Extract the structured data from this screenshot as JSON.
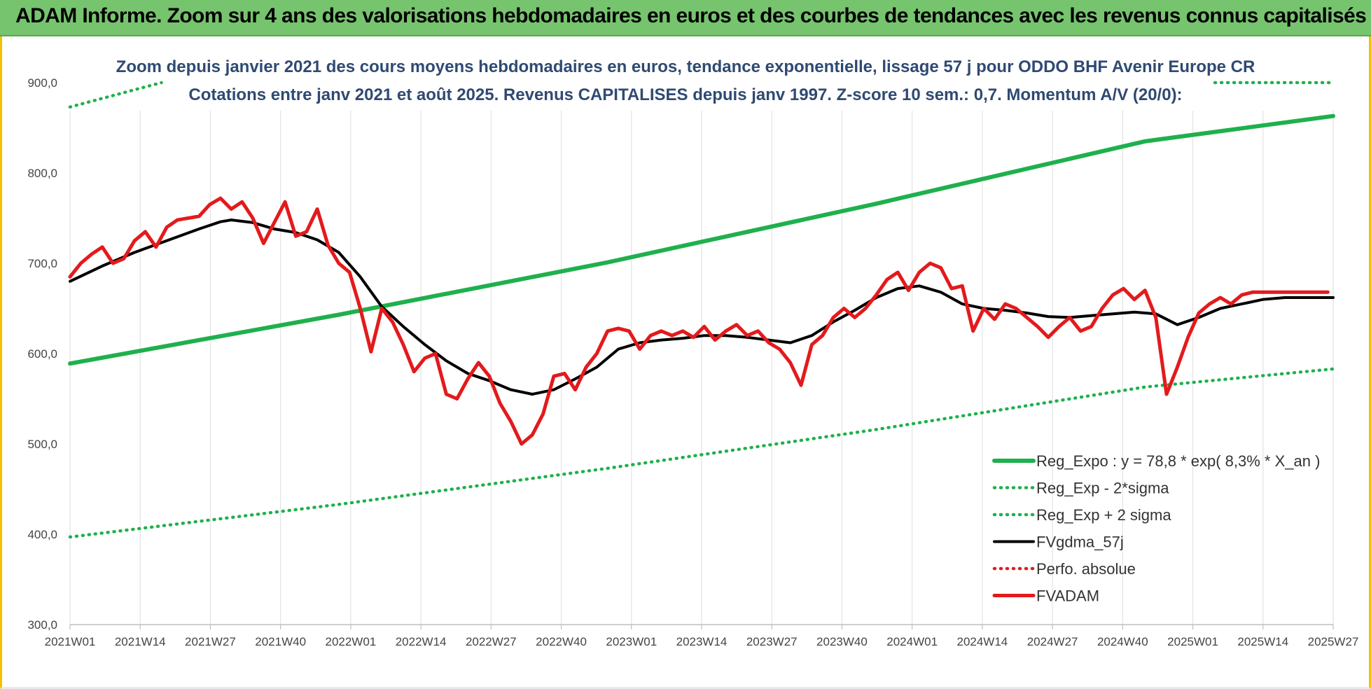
{
  "page": {
    "banner_title": "ADAM Informe. Zoom sur 4 ans des valorisations hebdomadaires en euros et des courbes de tendances avec les revenus connus capitalisés",
    "colors": {
      "banner_bg": "#77c46f",
      "frame_border": "#f2c200"
    }
  },
  "chart_data": {
    "type": "line",
    "title": "Zoom depuis janvier 2021 des cours moyens hebdomadaires en euros, tendance exponentielle, lissage 57 j pour ODDO BHF Avenir Europe CR",
    "subtitle": "Cotations entre janv 2021 et août 2025. Revenus CAPITALISES depuis janv 1997. Z-score 10 sem.: 0,7. Momentum A/V (20/0):",
    "xlabel": "",
    "ylabel": "",
    "ylim": [
      300,
      900
    ],
    "yticks": [
      "300,0",
      "400,0",
      "500,0",
      "600,0",
      "700,0",
      "800,0",
      "900,0"
    ],
    "x_tick_labels": [
      "2021W01",
      "2021W14",
      "2021W27",
      "2021W40",
      "2022W01",
      "2022W14",
      "2022W27",
      "2022W40",
      "2023W01",
      "2023W14",
      "2023W27",
      "2023W40",
      "2024W01",
      "2024W14",
      "2024W27",
      "2024W40",
      "2025W01",
      "2025W14",
      "2025W27"
    ],
    "x_range_weeks": [
      0,
      235
    ],
    "grid": "vertical",
    "legend_position": "bottom-right",
    "series": [
      {
        "name": "Reg_Expo : y = 78,8 * exp( 8,3% *  X_an )",
        "color": "#1fb04d",
        "style": "solid",
        "x": [
          0,
          50,
          100,
          150,
          200,
          235
        ],
        "values": [
          589,
          643,
          701,
          766,
          835,
          863
        ]
      },
      {
        "name": "Reg_Exp - 2*sigma",
        "color": "#1fb04d",
        "style": "dotted",
        "x": [
          0,
          50,
          100,
          150,
          200,
          235
        ],
        "values": [
          397,
          433,
          473,
          516,
          563,
          583
        ]
      },
      {
        "name": "Reg_Exp + 2 sigma",
        "color": "#1fb04d",
        "style": "dotted",
        "x": [
          0,
          17,
          213,
          235
        ],
        "values": [
          873,
          900,
          900,
          900
        ],
        "visible_segments": [
          [
            0,
            17
          ],
          [
            213,
            235
          ]
        ]
      },
      {
        "name": "FVgdma_57j",
        "color": "#000000",
        "style": "solid",
        "x": [
          0,
          6,
          12,
          18,
          24,
          28,
          30,
          34,
          38,
          42,
          46,
          50,
          54,
          58,
          62,
          66,
          70,
          74,
          78,
          82,
          86,
          90,
          94,
          98,
          102,
          106,
          110,
          114,
          118,
          122,
          126,
          130,
          134,
          138,
          142,
          146,
          150,
          154,
          158,
          162,
          166,
          170,
          174,
          178,
          182,
          186,
          190,
          194,
          198,
          202,
          206,
          210,
          214,
          218,
          222,
          226,
          230,
          235
        ],
        "values": [
          680,
          697,
          712,
          725,
          738,
          746,
          748,
          745,
          738,
          734,
          726,
          712,
          685,
          652,
          630,
          610,
          592,
          578,
          570,
          560,
          555,
          560,
          572,
          585,
          605,
          612,
          615,
          617,
          620,
          620,
          618,
          615,
          612,
          620,
          635,
          648,
          662,
          672,
          675,
          668,
          655,
          650,
          648,
          645,
          641,
          640,
          642,
          644,
          646,
          644,
          632,
          640,
          650,
          655,
          660,
          662,
          662,
          662
        ]
      },
      {
        "name": "Perfo. absolue",
        "color": "#e31a1c",
        "style": "dotted",
        "x": [],
        "values": []
      },
      {
        "name": "FVADAM",
        "color": "#e31a1c",
        "style": "solid",
        "x": [
          0,
          2,
          4,
          6,
          8,
          10,
          12,
          14,
          16,
          18,
          20,
          22,
          24,
          26,
          28,
          30,
          32,
          34,
          36,
          38,
          40,
          42,
          44,
          46,
          48,
          50,
          52,
          54,
          56,
          58,
          60,
          62,
          64,
          66,
          68,
          70,
          72,
          74,
          76,
          78,
          80,
          82,
          84,
          86,
          88,
          90,
          92,
          94,
          96,
          98,
          100,
          102,
          104,
          106,
          108,
          110,
          112,
          114,
          116,
          118,
          120,
          122,
          124,
          126,
          128,
          130,
          132,
          134,
          136,
          138,
          140,
          142,
          144,
          146,
          148,
          150,
          152,
          154,
          156,
          158,
          160,
          162,
          164,
          166,
          168,
          170,
          172,
          174,
          176,
          178,
          180,
          182,
          184,
          186,
          188,
          190,
          192,
          194,
          196,
          198,
          200,
          202,
          204,
          206,
          208,
          210,
          212,
          214,
          216,
          218,
          220,
          222,
          224,
          226,
          228,
          230,
          232,
          234
        ],
        "values": [
          685,
          700,
          710,
          718,
          700,
          705,
          725,
          735,
          718,
          740,
          748,
          750,
          752,
          765,
          772,
          760,
          768,
          750,
          722,
          745,
          768,
          730,
          735,
          760,
          720,
          700,
          690,
          650,
          602,
          650,
          635,
          610,
          580,
          595,
          600,
          555,
          550,
          572,
          590,
          575,
          545,
          525,
          500,
          510,
          533,
          575,
          578,
          560,
          585,
          600,
          625,
          628,
          625,
          605,
          620,
          625,
          620,
          625,
          618,
          630,
          615,
          625,
          632,
          620,
          625,
          612,
          605,
          590,
          565,
          610,
          620,
          640,
          650,
          640,
          650,
          665,
          682,
          690,
          670,
          690,
          700,
          695,
          672,
          675,
          625,
          650,
          638,
          655,
          650,
          640,
          630,
          618,
          630,
          640,
          625,
          630,
          650,
          665,
          672,
          660,
          670,
          640,
          555,
          585,
          618,
          645,
          655,
          662,
          655,
          665,
          668,
          668,
          668,
          668,
          668,
          668,
          668,
          668
        ]
      }
    ]
  }
}
